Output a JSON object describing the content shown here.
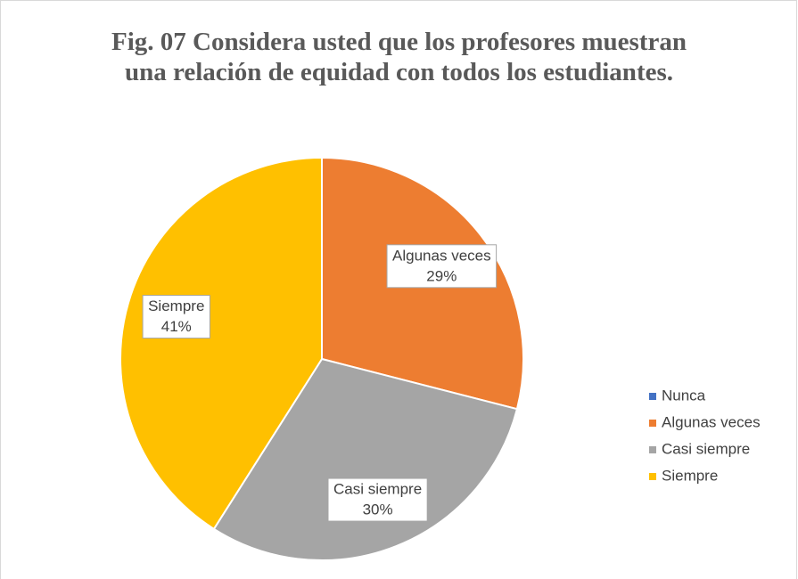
{
  "chart_data": {
    "type": "pie",
    "title": "Fig. 07 Considera usted que los profesores muestran una relación de equidad con todos los estudiantes.",
    "categories": [
      "Nunca",
      "Algunas veces",
      "Casi siempre",
      "Siempre"
    ],
    "values": [
      0,
      29,
      30,
      41
    ],
    "value_labels": [
      null,
      "29%",
      "30%",
      "41%"
    ],
    "colors": [
      "#4472c4",
      "#ed7d31",
      "#a5a5a5",
      "#ffc000"
    ],
    "legend": "right"
  }
}
